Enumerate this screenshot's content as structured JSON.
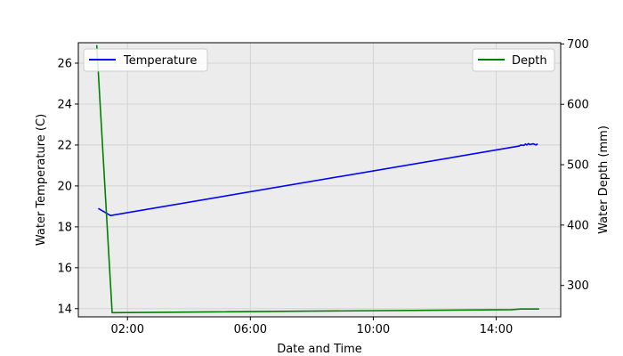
{
  "chart_data": {
    "type": "line",
    "xlabel": "Date and Time",
    "ylabel_left": "Water Temperature (C)",
    "ylabel_right": "Water Depth (mm)",
    "x_unit": "hours",
    "x_ticks": [
      {
        "value": 2,
        "label": "02:00"
      },
      {
        "value": 6,
        "label": "06:00"
      },
      {
        "value": 10,
        "label": "10:00"
      },
      {
        "value": 14,
        "label": "14:00"
      }
    ],
    "xlim": [
      0.4,
      16.1
    ],
    "ylim_left": [
      13.6,
      27.0
    ],
    "ylim_right": [
      248,
      702
    ],
    "yticks_left": [
      14,
      16,
      18,
      20,
      22,
      24,
      26
    ],
    "yticks_right": [
      300,
      400,
      500,
      600,
      700
    ],
    "grid": true,
    "background": "#ececec",
    "series": [
      {
        "name": "Temperature",
        "axis": "left",
        "color": "#0000ff",
        "legend_position": "upper-left",
        "x": [
          1.05,
          1.45,
          14.75,
          14.8,
          14.9,
          14.95,
          15.0,
          15.05,
          15.1,
          15.2,
          15.3,
          15.35
        ],
        "y": [
          18.9,
          18.55,
          21.95,
          22.0,
          21.98,
          22.05,
          22.0,
          22.07,
          22.02,
          22.06,
          22.0,
          22.06
        ]
      },
      {
        "name": "Depth",
        "axis": "right",
        "color": "#008000",
        "legend_position": "upper-right",
        "x": [
          1.0,
          1.5,
          14.5,
          14.8,
          15.4
        ],
        "y": [
          698,
          255,
          260,
          261,
          261
        ]
      }
    ]
  }
}
